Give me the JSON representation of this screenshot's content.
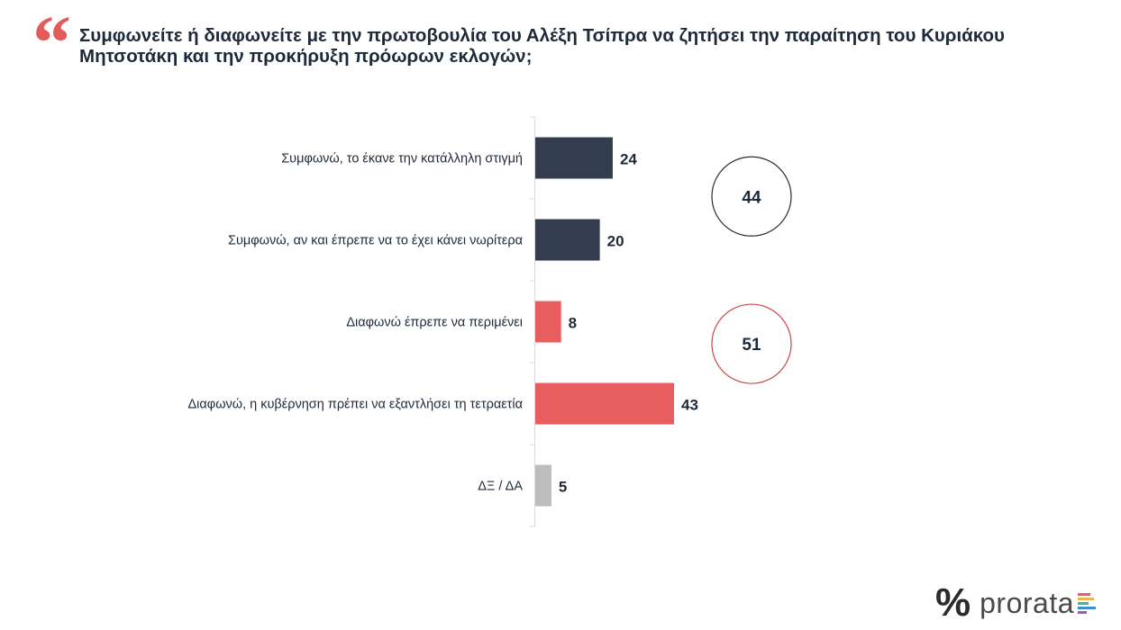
{
  "header": {
    "title": "Συμφωνείτε ή διαφωνείτε με την πρωτοβουλία του Αλέξη Τσίπρα να ζητήσει την παραίτηση του Κυριάκου Μητσοτάκη και την προκήρυξη πρόωρων εκλογών;"
  },
  "brand": {
    "name": "prorata"
  },
  "chart_data": {
    "type": "bar",
    "orientation": "horizontal",
    "categories": [
      "Συμφωνώ, το έκανε την κατάλληλη στιγμή",
      "Συμφωνώ, αν και έπρεπε να το έχει κάνει νωρίτερα",
      "Διαφωνώ έπρεπε να περιμένει",
      "Διαφωνώ, η κυβέρνηση πρέπει να εξαντλήσει τη τετραετία",
      "ΔΞ / ΔΑ"
    ],
    "values": [
      24,
      20,
      8,
      43,
      5
    ],
    "bar_colors": [
      "#333d4f",
      "#333d4f",
      "#e85d5f",
      "#e85d5f",
      "#bdbdbd"
    ],
    "xlim": [
      0,
      43
    ],
    "grid": false,
    "legend": "none",
    "totals": [
      {
        "value": "44",
        "group": "Συμφωνώ",
        "color": "#2a2a2a"
      },
      {
        "value": "51",
        "group": "Διαφωνώ",
        "color": "#c94a4a"
      }
    ]
  }
}
